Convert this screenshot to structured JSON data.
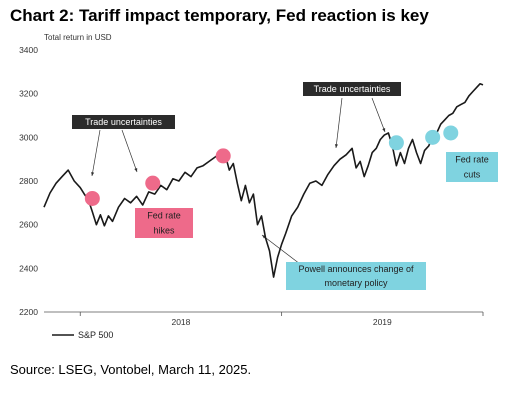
{
  "title": "Chart 2: Tariff impact temporary, Fed reaction is key",
  "source": "Source: LSEG, Vontobel, March 11, 2025.",
  "colors": {
    "line": "#1a1a1a",
    "pink": "#ee6a8a",
    "cyan": "#7fd3e0",
    "dark_box": "#2b2b2b",
    "grid": "#dddddd"
  },
  "chart_data": {
    "type": "line",
    "ylabel": "Total return in USD",
    "ylim": [
      2200,
      3400
    ],
    "yticks": [
      2200,
      2400,
      2600,
      2800,
      3000,
      3200,
      3400
    ],
    "xlim": [
      2017.82,
      2020.0
    ],
    "xtick_labels": [
      {
        "label": "2018",
        "x": 2018.5
      },
      {
        "label": "2019",
        "x": 2019.5
      }
    ],
    "legend": {
      "placement": "bottom-left",
      "label": "S&P 500"
    },
    "grid": false,
    "series": [
      {
        "name": "S&P 500",
        "points": [
          [
            2017.82,
            2680
          ],
          [
            2017.85,
            2745
          ],
          [
            2017.88,
            2790
          ],
          [
            2017.91,
            2820
          ],
          [
            2017.94,
            2850
          ],
          [
            2017.97,
            2800
          ],
          [
            2018.0,
            2770
          ],
          [
            2018.02,
            2740
          ],
          [
            2018.04,
            2715
          ],
          [
            2018.06,
            2660
          ],
          [
            2018.08,
            2600
          ],
          [
            2018.1,
            2645
          ],
          [
            2018.12,
            2595
          ],
          [
            2018.14,
            2640
          ],
          [
            2018.16,
            2615
          ],
          [
            2018.19,
            2680
          ],
          [
            2018.22,
            2720
          ],
          [
            2018.25,
            2700
          ],
          [
            2018.28,
            2730
          ],
          [
            2018.31,
            2690
          ],
          [
            2018.34,
            2750
          ],
          [
            2018.37,
            2740
          ],
          [
            2018.4,
            2780
          ],
          [
            2018.43,
            2760
          ],
          [
            2018.46,
            2810
          ],
          [
            2018.49,
            2800
          ],
          [
            2018.52,
            2840
          ],
          [
            2018.55,
            2820
          ],
          [
            2018.58,
            2860
          ],
          [
            2018.61,
            2870
          ],
          [
            2018.64,
            2890
          ],
          [
            2018.67,
            2910
          ],
          [
            2018.7,
            2930
          ],
          [
            2018.72,
            2920
          ],
          [
            2018.74,
            2850
          ],
          [
            2018.76,
            2880
          ],
          [
            2018.78,
            2790
          ],
          [
            2018.8,
            2710
          ],
          [
            2018.82,
            2780
          ],
          [
            2018.84,
            2700
          ],
          [
            2018.86,
            2740
          ],
          [
            2018.88,
            2600
          ],
          [
            2018.9,
            2640
          ],
          [
            2018.92,
            2540
          ],
          [
            2018.94,
            2480
          ],
          [
            2018.96,
            2360
          ],
          [
            2018.98,
            2450
          ],
          [
            2019.0,
            2510
          ],
          [
            2019.02,
            2560
          ],
          [
            2019.05,
            2640
          ],
          [
            2019.08,
            2680
          ],
          [
            2019.11,
            2740
          ],
          [
            2019.14,
            2790
          ],
          [
            2019.17,
            2800
          ],
          [
            2019.2,
            2780
          ],
          [
            2019.23,
            2830
          ],
          [
            2019.26,
            2870
          ],
          [
            2019.29,
            2900
          ],
          [
            2019.32,
            2920
          ],
          [
            2019.35,
            2950
          ],
          [
            2019.37,
            2860
          ],
          [
            2019.39,
            2890
          ],
          [
            2019.41,
            2820
          ],
          [
            2019.43,
            2870
          ],
          [
            2019.45,
            2930
          ],
          [
            2019.47,
            2950
          ],
          [
            2019.49,
            2990
          ],
          [
            2019.51,
            3010
          ],
          [
            2019.53,
            3020
          ],
          [
            2019.55,
            2960
          ],
          [
            2019.57,
            2870
          ],
          [
            2019.59,
            2930
          ],
          [
            2019.61,
            2880
          ],
          [
            2019.63,
            2950
          ],
          [
            2019.65,
            2990
          ],
          [
            2019.67,
            2930
          ],
          [
            2019.69,
            2880
          ],
          [
            2019.71,
            2940
          ],
          [
            2019.73,
            2960
          ],
          [
            2019.75,
            3000
          ],
          [
            2019.77,
            3020
          ],
          [
            2019.79,
            3060
          ],
          [
            2019.81,
            3080
          ],
          [
            2019.83,
            3100
          ],
          [
            2019.85,
            3110
          ],
          [
            2019.87,
            3140
          ],
          [
            2019.89,
            3150
          ],
          [
            2019.91,
            3160
          ],
          [
            2019.93,
            3190
          ],
          [
            2019.95,
            3210
          ],
          [
            2019.97,
            3230
          ],
          [
            2019.985,
            3245
          ],
          [
            2020.0,
            3240
          ]
        ]
      }
    ],
    "markers": [
      {
        "color_key": "pink",
        "x": 2018.06,
        "y": 2720
      },
      {
        "color_key": "pink",
        "x": 2018.36,
        "y": 2790
      },
      {
        "color_key": "pink",
        "x": 2018.71,
        "y": 2915
      },
      {
        "color_key": "cyan",
        "x": 2019.57,
        "y": 2975
      },
      {
        "color_key": "cyan",
        "x": 2019.75,
        "y": 3000
      },
      {
        "color_key": "cyan",
        "x": 2019.84,
        "y": 3020
      }
    ],
    "annotations": [
      {
        "text": "Trade uncertainties",
        "style": "dark",
        "anchor": "left-trade"
      },
      {
        "text": "Trade uncertainties",
        "style": "dark",
        "anchor": "right-trade"
      },
      {
        "text": "Fed rate hikes",
        "style": "pink",
        "lines": [
          "Fed rate",
          "hikes"
        ]
      },
      {
        "text": "Powell announces change of monetary policy",
        "style": "cyan",
        "lines": [
          "Powell announces change of",
          "monetary policy"
        ]
      },
      {
        "text": "Fed rate cuts",
        "style": "cyan",
        "lines": [
          "Fed rate",
          "cuts"
        ]
      }
    ]
  }
}
